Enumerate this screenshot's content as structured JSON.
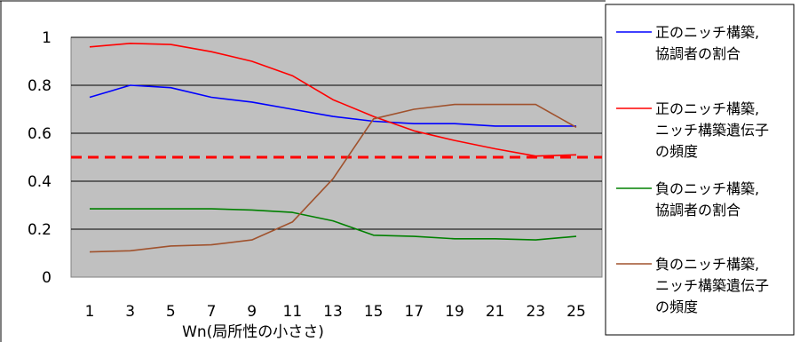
{
  "chart_data": {
    "type": "line",
    "title": "",
    "xlabel": "Wn(局所性の小ささ)",
    "ylabel": "",
    "ylim": [
      0,
      1
    ],
    "yticks": [
      "0",
      "0.2",
      "0.4",
      "0.6",
      "0.8",
      "1"
    ],
    "x": [
      1,
      3,
      5,
      7,
      9,
      11,
      13,
      15,
      17,
      19,
      21,
      23,
      25
    ],
    "xtick_labels": [
      "1",
      "3",
      "5",
      "7",
      "9",
      "11",
      "13",
      "15",
      "17",
      "19",
      "21",
      "23",
      "25"
    ],
    "grid": true,
    "plot_background": "#c0c0c0",
    "legend_position": "right",
    "reference_line": {
      "y": 0.5,
      "color": "#ff0000",
      "style": "dashed"
    },
    "series": [
      {
        "name": "正のニッチ構築,協調者の割合",
        "legend_lines": [
          "正のニッチ構築,",
          "協調者の割合"
        ],
        "color": "#0000ff",
        "values": [
          0.75,
          0.8,
          0.79,
          0.75,
          0.73,
          0.7,
          0.67,
          0.65,
          0.64,
          0.64,
          0.63,
          0.63,
          0.63
        ]
      },
      {
        "name": "正のニッチ構築,ニッチ構築遺伝子の頻度",
        "legend_lines": [
          "正のニッチ構築,",
          "ニッチ構築遺伝子",
          "の頻度"
        ],
        "color": "#ff0000",
        "values": [
          0.96,
          0.975,
          0.97,
          0.94,
          0.9,
          0.84,
          0.74,
          0.67,
          0.61,
          0.57,
          0.535,
          0.505,
          0.51
        ]
      },
      {
        "name": "負のニッチ構築,協調者の割合",
        "legend_lines": [
          "負のニッチ構築,",
          "協調者の割合"
        ],
        "color": "#008000",
        "values": [
          0.285,
          0.285,
          0.285,
          0.285,
          0.28,
          0.27,
          0.235,
          0.175,
          0.17,
          0.16,
          0.16,
          0.155,
          0.17
        ]
      },
      {
        "name": "負のニッチ構築,ニッチ構築遺伝子の頻度",
        "legend_lines": [
          "負のニッチ構築,",
          "ニッチ構築遺伝子",
          "の頻度"
        ],
        "color": "#a0522d",
        "values": [
          0.105,
          0.11,
          0.13,
          0.135,
          0.155,
          0.23,
          0.41,
          0.66,
          0.7,
          0.72,
          0.72,
          0.72,
          0.625
        ]
      }
    ]
  }
}
